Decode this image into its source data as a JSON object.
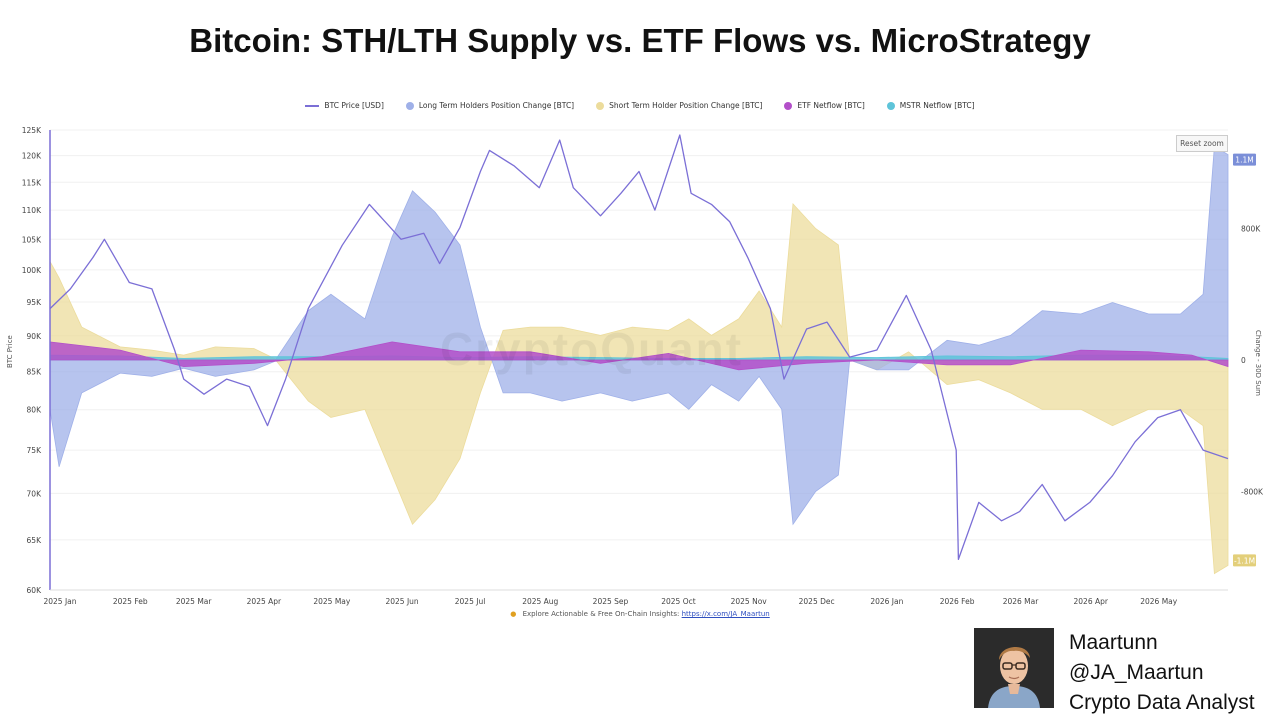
{
  "title": "Bitcoin: STH/LTH Supply vs. ETF Flows vs. MicroStrategy",
  "reset_zoom": "Reset zoom",
  "watermark": "CryptoQuant",
  "footer": {
    "text": "Explore Actionable & Free On-Chain Insights:",
    "link": "https://x.com/JA_Maartun"
  },
  "author": {
    "name": "Maartunn",
    "handle": "@JA_Maartun",
    "role": "Crypto Data Analyst"
  },
  "colors": {
    "btc": "#7b6fd6",
    "lth": "#9fb0e8",
    "sth": "#ecdc9c",
    "etf": "#b34fc9",
    "mstr": "#5ec4d9"
  },
  "chart_data": {
    "type": "area",
    "y_left": {
      "label": "BTC Price",
      "ticks": [
        "125K",
        "120K",
        "115K",
        "110K",
        "105K",
        "100K",
        "95K",
        "90K",
        "85K",
        "80K",
        "75K",
        "70K",
        "65K",
        "60K"
      ],
      "range": [
        60000,
        125000
      ],
      "scale": "log"
    },
    "y_right": {
      "label": "Change - 30D Sum",
      "ticks": [
        "800K",
        "0",
        "-800K"
      ],
      "range": [
        -1400000,
        1400000
      ]
    },
    "x_ticks": [
      "2025 Jan",
      "2025 Feb",
      "2025 Mar",
      "2025 Apr",
      "2025 May",
      "2025 Jun",
      "2025 Jul",
      "2025 Aug",
      "2025 Sep",
      "2025 Oct",
      "2025 Nov",
      "2025 Dec",
      "2026 Jan",
      "2026 Feb",
      "2026 Mar",
      "2026 Apr",
      "2026 May"
    ],
    "x_range": [
      "2025-01-01",
      "2026-06-05"
    ],
    "flags": [
      {
        "label": "1.1M",
        "value": 1220000,
        "color": "#7b8fd8"
      },
      {
        "label": "-1.1M",
        "value": -1220000,
        "color": "#e3cf7a"
      }
    ],
    "series": [
      {
        "name": "BTC Price [USD]",
        "kind": "line",
        "axis": "left",
        "color": "#7b6fd6",
        "dates": [
          "2025-01-01",
          "2025-01-10",
          "2025-01-20",
          "2025-01-25",
          "2025-02-05",
          "2025-02-15",
          "2025-02-25",
          "2025-03-01",
          "2025-03-10",
          "2025-03-20",
          "2025-03-30",
          "2025-04-07",
          "2025-04-15",
          "2025-04-25",
          "2025-05-10",
          "2025-05-22",
          "2025-06-05",
          "2025-06-15",
          "2025-06-22",
          "2025-07-01",
          "2025-07-10",
          "2025-07-14",
          "2025-07-25",
          "2025-08-05",
          "2025-08-14",
          "2025-08-20",
          "2025-09-01",
          "2025-09-10",
          "2025-09-18",
          "2025-09-25",
          "2025-10-06",
          "2025-10-11",
          "2025-10-20",
          "2025-10-28",
          "2025-11-05",
          "2025-11-15",
          "2025-11-21",
          "2025-12-01",
          "2025-12-10",
          "2025-12-20",
          "2026-01-01",
          "2026-01-14",
          "2026-01-25",
          "2026-02-05",
          "2026-02-06",
          "2026-02-15",
          "2026-02-25",
          "2026-03-05",
          "2026-03-15",
          "2026-03-25",
          "2026-04-05",
          "2026-04-15",
          "2026-04-25",
          "2026-05-05",
          "2026-05-15",
          "2026-05-25",
          "2026-06-05"
        ],
        "values": [
          94000,
          97000,
          102000,
          105000,
          98000,
          97000,
          88000,
          84000,
          82000,
          84000,
          83000,
          78000,
          84000,
          94000,
          104000,
          111000,
          105000,
          106000,
          101000,
          107000,
          117000,
          121000,
          118000,
          114000,
          123000,
          114000,
          109000,
          113000,
          117000,
          110000,
          124000,
          113000,
          111000,
          108000,
          102000,
          94000,
          84000,
          91000,
          92000,
          87000,
          88000,
          96000,
          88000,
          75000,
          63000,
          69000,
          67000,
          68000,
          71000,
          67000,
          69000,
          72000,
          76000,
          79000,
          80000,
          75000,
          74000
        ]
      },
      {
        "name": "Long Term Holders Position Change [BTC]",
        "kind": "area",
        "axis": "right",
        "color": "#9fb0e8",
        "dates": [
          "2025-01-01",
          "2025-01-05",
          "2025-01-15",
          "2025-02-01",
          "2025-02-15",
          "2025-03-01",
          "2025-03-15",
          "2025-04-01",
          "2025-04-10",
          "2025-04-25",
          "2025-05-05",
          "2025-05-20",
          "2025-06-01",
          "2025-06-10",
          "2025-06-20",
          "2025-07-01",
          "2025-07-10",
          "2025-07-20",
          "2025-08-01",
          "2025-08-15",
          "2025-09-01",
          "2025-09-15",
          "2025-10-01",
          "2025-10-10",
          "2025-10-20",
          "2025-11-01",
          "2025-11-10",
          "2025-11-20",
          "2025-11-25",
          "2025-12-05",
          "2025-12-15",
          "2025-12-20",
          "2026-01-01",
          "2026-01-15",
          "2026-02-01",
          "2026-02-15",
          "2026-03-01",
          "2026-03-15",
          "2026-04-01",
          "2026-04-15",
          "2026-05-01",
          "2026-05-15",
          "2026-05-25",
          "2026-05-30",
          "2026-06-05"
        ],
        "values": [
          -300000,
          -650000,
          -200000,
          -80000,
          -100000,
          -50000,
          -100000,
          -60000,
          -10000,
          300000,
          400000,
          250000,
          750000,
          1030000,
          900000,
          700000,
          200000,
          -200000,
          -200000,
          -250000,
          -200000,
          -250000,
          -200000,
          -300000,
          -150000,
          -250000,
          -100000,
          -300000,
          -1000000,
          -800000,
          -700000,
          0,
          -60000,
          -60000,
          120000,
          90000,
          150000,
          300000,
          280000,
          350000,
          280000,
          280000,
          400000,
          1300000,
          1250000
        ]
      },
      {
        "name": "Short Term Holder Position Change [BTC]",
        "kind": "area",
        "axis": "right",
        "color": "#ecdc9c",
        "dates": [
          "2025-01-01",
          "2025-01-05",
          "2025-01-15",
          "2025-02-01",
          "2025-02-15",
          "2025-03-01",
          "2025-03-15",
          "2025-04-01",
          "2025-04-10",
          "2025-04-25",
          "2025-05-05",
          "2025-05-20",
          "2025-06-01",
          "2025-06-10",
          "2025-06-20",
          "2025-07-01",
          "2025-07-10",
          "2025-07-20",
          "2025-08-01",
          "2025-08-15",
          "2025-09-01",
          "2025-09-15",
          "2025-10-01",
          "2025-10-10",
          "2025-10-20",
          "2025-11-01",
          "2025-11-10",
          "2025-11-20",
          "2025-11-25",
          "2025-12-05",
          "2025-12-15",
          "2025-12-20",
          "2026-01-01",
          "2026-01-15",
          "2026-02-01",
          "2026-02-15",
          "2026-03-01",
          "2026-03-15",
          "2026-04-01",
          "2026-04-15",
          "2026-05-01",
          "2026-05-15",
          "2026-05-25",
          "2026-05-30",
          "2026-06-05"
        ],
        "values": [
          600000,
          500000,
          200000,
          80000,
          60000,
          30000,
          80000,
          70000,
          10000,
          -250000,
          -350000,
          -300000,
          -700000,
          -1000000,
          -850000,
          -600000,
          -200000,
          180000,
          200000,
          200000,
          150000,
          200000,
          180000,
          250000,
          150000,
          250000,
          420000,
          200000,
          950000,
          800000,
          700000,
          0,
          -60000,
          50000,
          -150000,
          -120000,
          -200000,
          -300000,
          -300000,
          -400000,
          -300000,
          -300000,
          -400000,
          -1300000,
          -1250000
        ]
      },
      {
        "name": "ETF Netflow [BTC]",
        "kind": "area",
        "axis": "right",
        "color": "#b34fc9",
        "dates": [
          "2025-01-01",
          "2025-02-01",
          "2025-03-01",
          "2025-04-01",
          "2025-05-01",
          "2025-06-01",
          "2025-07-01",
          "2025-08-01",
          "2025-09-01",
          "2025-10-01",
          "2025-11-01",
          "2025-12-01",
          "2026-01-01",
          "2026-02-01",
          "2026-03-01",
          "2026-04-01",
          "2026-05-01",
          "2026-05-20",
          "2026-06-05"
        ],
        "values": [
          110000,
          60000,
          -40000,
          -20000,
          20000,
          110000,
          50000,
          50000,
          -20000,
          40000,
          -60000,
          -20000,
          0,
          -30000,
          -30000,
          60000,
          50000,
          30000,
          -40000
        ]
      },
      {
        "name": "MSTR Netflow [BTC]",
        "kind": "area",
        "axis": "right",
        "color": "#5ec4d9",
        "dates": [
          "2025-01-01",
          "2025-02-01",
          "2025-03-01",
          "2025-04-01",
          "2025-05-01",
          "2025-06-01",
          "2025-07-01",
          "2025-08-01",
          "2025-09-01",
          "2025-10-01",
          "2025-11-01",
          "2025-12-01",
          "2026-01-01",
          "2026-02-01",
          "2026-03-01",
          "2026-04-01",
          "2026-05-01",
          "2026-05-20",
          "2026-06-05"
        ],
        "values": [
          30000,
          25000,
          10000,
          20000,
          20000,
          25000,
          15000,
          20000,
          15000,
          10000,
          10000,
          20000,
          15000,
          25000,
          20000,
          30000,
          30000,
          20000,
          10000
        ]
      }
    ]
  }
}
